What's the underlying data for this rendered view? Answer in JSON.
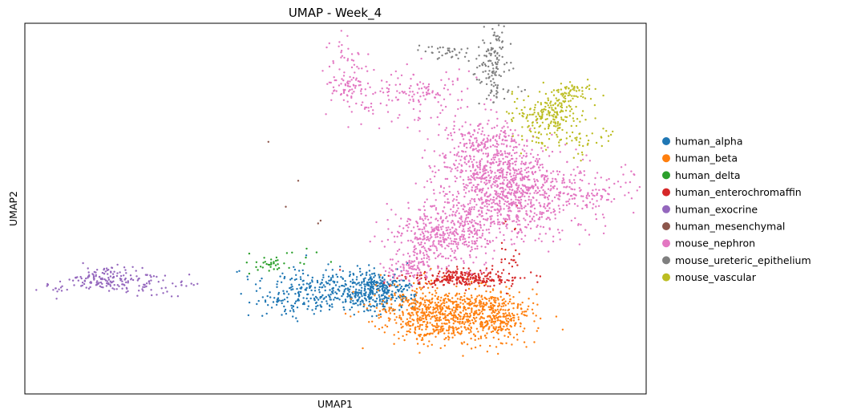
{
  "chart_data": {
    "type": "scatter",
    "title": "UMAP - Week_4",
    "xlabel": "UMAP1",
    "ylabel": "UMAP2",
    "xticks": [],
    "yticks": [],
    "grid": false,
    "legend_position": "right-outside",
    "xlim": [
      -10,
      15
    ],
    "ylim": [
      -5,
      15
    ],
    "series": [
      {
        "name": "human_alpha",
        "color": "#1f77b4",
        "clusters": [
          {
            "center": [
              4.0,
              0.6
            ],
            "spread": [
              0.75,
              0.55
            ],
            "n": 380
          },
          {
            "center": [
              1.8,
              0.4
            ],
            "spread": [
              1.0,
              0.6
            ],
            "n": 200
          },
          {
            "center": [
              0.5,
              0.1
            ],
            "spread": [
              0.8,
              0.8
            ],
            "n": 60
          }
        ]
      },
      {
        "name": "human_beta",
        "color": "#ff7f0e",
        "clusters": [
          {
            "center": [
              6.9,
              -0.7
            ],
            "spread": [
              1.4,
              0.8
            ],
            "n": 750
          },
          {
            "center": [
              9.0,
              -0.9
            ],
            "spread": [
              0.75,
              0.65
            ],
            "n": 250
          }
        ]
      },
      {
        "name": "human_delta",
        "color": "#2ca02c",
        "clusters": [
          {
            "center": [
              -0.2,
              2.0
            ],
            "spread": [
              0.5,
              0.3
            ],
            "n": 30
          },
          {
            "center": [
              1.2,
              2.2
            ],
            "spread": [
              0.6,
              0.3
            ],
            "n": 10
          }
        ]
      },
      {
        "name": "human_enterochromaffin",
        "color": "#d62728",
        "clusters": [
          {
            "center": [
              7.6,
              1.25
            ],
            "spread": [
              1.1,
              0.22
            ],
            "n": 260
          },
          {
            "center": [
              9.5,
              2.7
            ],
            "spread": [
              0.2,
              0.8
            ],
            "n": 25
          }
        ]
      },
      {
        "name": "human_exocrine",
        "color": "#9467bd",
        "clusters": [
          {
            "center": [
              -6.8,
              1.2
            ],
            "spread": [
              0.7,
              0.3
            ],
            "n": 120
          },
          {
            "center": [
              -5.0,
              1.0
            ],
            "spread": [
              0.8,
              0.35
            ],
            "n": 55
          },
          {
            "center": [
              -8.6,
              0.8
            ],
            "spread": [
              0.35,
              0.3
            ],
            "n": 15
          },
          {
            "center": [
              -3.5,
              0.7
            ],
            "spread": [
              0.45,
              0.25
            ],
            "n": 10
          }
        ]
      },
      {
        "name": "human_mesenchymal",
        "color": "#8c564b",
        "points": [
          [
            1.8,
            4.2
          ],
          [
            1.9,
            4.35
          ],
          [
            0.5,
            5.1
          ],
          [
            1.0,
            6.5
          ],
          [
            -0.2,
            8.6
          ]
        ]
      },
      {
        "name": "mouse_nephron",
        "color": "#e377c2",
        "clusters": [
          {
            "center": [
              9.7,
              5.7
            ],
            "spread": [
              1.4,
              1.2
            ],
            "n": 850
          },
          {
            "center": [
              7.0,
              3.6
            ],
            "spread": [
              1.1,
              0.9
            ],
            "n": 450
          },
          {
            "center": [
              8.5,
              8.0
            ],
            "spread": [
              1.0,
              1.0
            ],
            "n": 350
          },
          {
            "center": [
              5.5,
              1.8
            ],
            "spread": [
              0.5,
              0.4
            ],
            "n": 100
          },
          {
            "center": [
              5.5,
              11.2
            ],
            "spread": [
              1.2,
              0.75
            ],
            "n": 150
          },
          {
            "center": [
              3.0,
              12.0
            ],
            "spread": [
              0.35,
              1.0
            ],
            "n": 90
          },
          {
            "center": [
              13.0,
              6.0
            ],
            "spread": [
              0.9,
              0.7
            ],
            "n": 80
          }
        ]
      },
      {
        "name": "mouse_ureteric_epithelium",
        "color": "#7f7f7f",
        "clusters": [
          {
            "center": [
              8.8,
              13.0
            ],
            "spread": [
              0.3,
              0.9
            ],
            "n": 110
          },
          {
            "center": [
              7.0,
              13.4
            ],
            "spread": [
              0.7,
              0.3
            ],
            "n": 40
          },
          {
            "center": [
              9.1,
              11.1
            ],
            "spread": [
              0.5,
              0.4
            ],
            "n": 20
          }
        ]
      },
      {
        "name": "mouse_vascular",
        "color": "#bcbd22",
        "clusters": [
          {
            "center": [
              11.0,
              9.9
            ],
            "spread": [
              0.75,
              0.75
            ],
            "n": 230
          },
          {
            "center": [
              12.0,
              11.3
            ],
            "spread": [
              0.45,
              0.25
            ],
            "n": 60
          },
          {
            "center": [
              12.8,
              8.5
            ],
            "spread": [
              0.5,
              0.6
            ],
            "n": 25
          }
        ]
      }
    ]
  }
}
